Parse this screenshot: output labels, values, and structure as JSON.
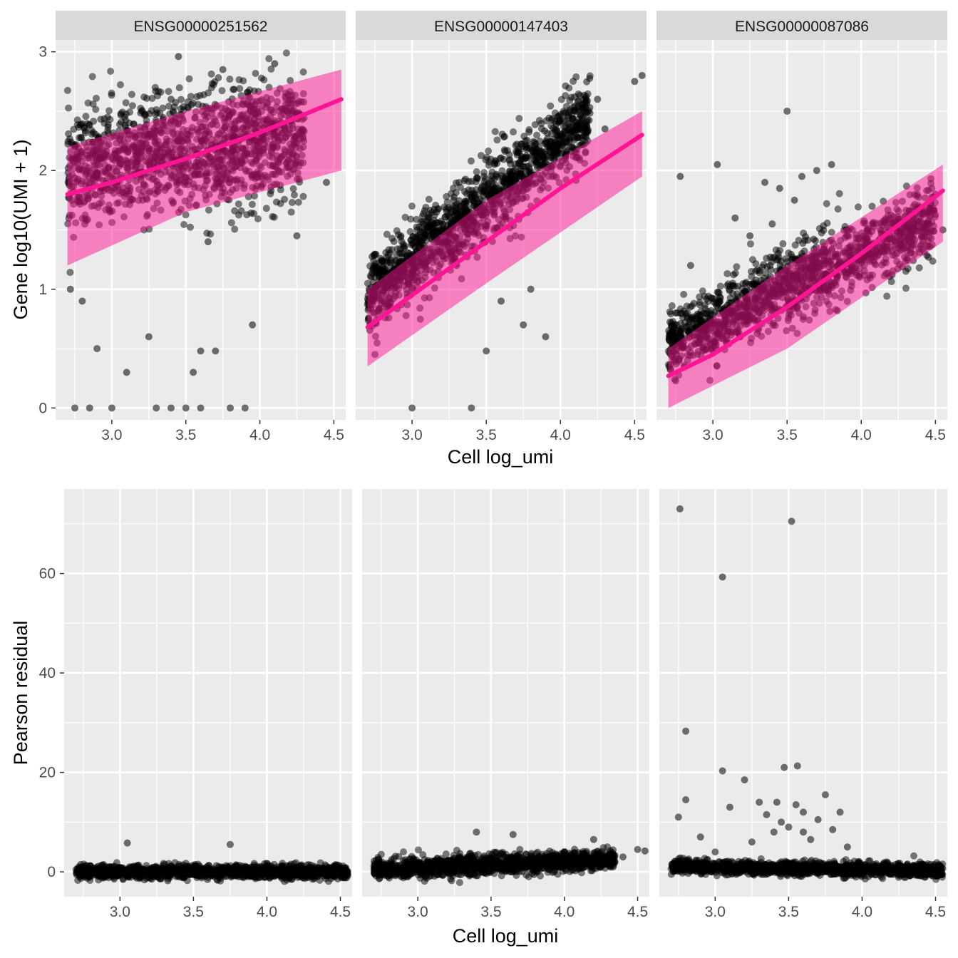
{
  "colors": {
    "panel_bg": "#ebebeb",
    "strip_bg": "#d9d9d9",
    "grid": "#ffffff",
    "point": "#000000",
    "fit_line": "#ff1493",
    "band": "#ff1493"
  },
  "chart_data": [
    {
      "type": "scatter",
      "facet_label": "ENSG00000251562",
      "xlabel": "",
      "ylabel": "Gene log10(UMI + 1)",
      "xlim": [
        2.62,
        4.58
      ],
      "ylim": [
        -0.1,
        3.1
      ],
      "x_ticks": [
        "3.0",
        "3.5",
        "4.0",
        "4.5"
      ],
      "y_ticks": [
        "0",
        "1",
        "2",
        "3"
      ],
      "fit": {
        "x": [
          2.7,
          3.0,
          3.5,
          4.0,
          4.55
        ],
        "y": [
          1.8,
          1.9,
          2.1,
          2.32,
          2.6
        ]
      },
      "band": {
        "x": [
          2.7,
          3.5,
          4.55
        ],
        "lower": [
          1.2,
          1.65,
          2.0
        ],
        "upper": [
          2.2,
          2.5,
          2.85
        ]
      },
      "points": {
        "x": [
          2.72,
          2.8,
          2.9,
          3.1,
          3.25,
          3.6,
          3.95,
          4.25,
          4.45,
          2.95,
          3.4,
          3.75,
          4.1,
          3.55,
          3.7,
          3.6,
          3.4,
          2.75,
          2.85,
          3.0,
          3.3,
          3.5,
          3.8,
          3.9,
          3.45,
          3.65
        ],
        "y": [
          1.0,
          0.9,
          0.5,
          0.3,
          0.6,
          0.48,
          0.7,
          1.45,
          1.9,
          2.3,
          2.6,
          2.85,
          2.9,
          0.3,
          0.48,
          0.0,
          0.0,
          0.0,
          0.0,
          0.0,
          0.0,
          0.0,
          0.0,
          0.0,
          2.96,
          1.4
        ]
      },
      "cloud": {
        "x_range": [
          2.7,
          4.3
        ],
        "center": [
          2.0,
          2.3
        ],
        "spread": 0.45
      }
    },
    {
      "type": "scatter",
      "facet_label": "ENSG00000147403",
      "xlabel": "Cell log_umi",
      "ylabel": "",
      "xlim": [
        2.62,
        4.58
      ],
      "ylim": [
        -0.1,
        3.1
      ],
      "x_ticks": [
        "3.0",
        "3.5",
        "4.0",
        "4.5"
      ],
      "y_ticks": [
        "0",
        "1",
        "2",
        "3"
      ],
      "fit": {
        "x": [
          2.7,
          3.0,
          3.5,
          4.0,
          4.55
        ],
        "y": [
          0.68,
          0.95,
          1.4,
          1.85,
          2.3
        ]
      },
      "band": {
        "x": [
          2.7,
          3.5,
          4.55
        ],
        "lower": [
          0.35,
          1.05,
          1.95
        ],
        "upper": [
          1.0,
          1.75,
          2.5
        ]
      },
      "points": {
        "x": [
          2.75,
          3.0,
          3.3,
          3.6,
          3.9,
          4.1,
          4.25,
          4.3,
          4.5,
          4.55,
          3.5,
          3.75,
          3.8,
          3.0,
          3.4
        ],
        "y": [
          1.1,
          1.0,
          1.2,
          0.9,
          0.6,
          2.5,
          2.6,
          2.35,
          2.75,
          2.8,
          0.48,
          0.7,
          1.0,
          0.0,
          0.0
        ]
      },
      "cloud": {
        "x_range": [
          2.7,
          4.2
        ],
        "center": [
          0.95,
          2.45
        ],
        "spread": 0.3
      }
    },
    {
      "type": "scatter",
      "facet_label": "ENSG00000087086",
      "xlabel": "",
      "ylabel": "",
      "xlim": [
        2.62,
        4.58
      ],
      "ylim": [
        -0.1,
        3.1
      ],
      "x_ticks": [
        "3.0",
        "3.5",
        "4.0",
        "4.5"
      ],
      "y_ticks": [
        "0",
        "1",
        "2",
        "3"
      ],
      "fit": {
        "x": [
          2.7,
          3.0,
          3.5,
          4.0,
          4.55
        ],
        "y": [
          0.27,
          0.45,
          0.85,
          1.3,
          1.83
        ]
      },
      "band": {
        "x": [
          2.7,
          3.5,
          4.55
        ],
        "lower": [
          0.0,
          0.5,
          1.4
        ],
        "upper": [
          0.5,
          1.2,
          2.05
        ]
      },
      "points": {
        "x": [
          2.78,
          3.03,
          3.5,
          3.15,
          3.35,
          3.4,
          3.55,
          3.6,
          3.7,
          3.8,
          3.9,
          2.85,
          2.75,
          4.55,
          4.5,
          3.25,
          3.45
        ],
        "y": [
          1.95,
          2.05,
          2.5,
          1.6,
          1.9,
          1.55,
          1.75,
          1.95,
          2.0,
          2.05,
          1.5,
          1.2,
          0.8,
          1.5,
          1.8,
          1.45,
          1.85
        ]
      },
      "cloud": {
        "x_range": [
          2.7,
          4.5
        ],
        "center": [
          0.55,
          1.6
        ],
        "spread": 0.28
      }
    },
    {
      "type": "scatter",
      "facet_label": "",
      "xlabel": "",
      "ylabel": "Pearson residual",
      "xlim": [
        2.62,
        4.58
      ],
      "ylim": [
        -5,
        77
      ],
      "x_ticks": [
        "3.0",
        "3.5",
        "4.0",
        "4.5"
      ],
      "y_ticks": [
        "0",
        "20",
        "40",
        "60"
      ],
      "points": {
        "x": [
          3.05,
          3.75,
          4.45,
          4.5
        ],
        "y": [
          5.8,
          5.5,
          1.0,
          0.5
        ]
      },
      "cloud": {
        "x_range": [
          2.7,
          4.55
        ],
        "center": [
          0.0,
          0.0
        ],
        "spread": 1.2
      }
    },
    {
      "type": "scatter",
      "facet_label": "",
      "xlabel": "Cell log_umi",
      "ylabel": "",
      "xlim": [
        2.62,
        4.58
      ],
      "ylim": [
        -5,
        77
      ],
      "x_ticks": [
        "3.0",
        "3.5",
        "4.0",
        "4.5"
      ],
      "y_ticks": [
        "0",
        "20",
        "40",
        "60"
      ],
      "points": {
        "x": [
          3.4,
          3.65,
          4.2,
          4.4,
          4.5,
          4.55
        ],
        "y": [
          8.0,
          7.5,
          6.5,
          3.0,
          4.5,
          4.2
        ]
      },
      "cloud": {
        "x_range": [
          2.7,
          4.35
        ],
        "center": [
          0.5,
          2.5
        ],
        "spread": 1.8
      }
    },
    {
      "type": "scatter",
      "facet_label": "",
      "xlabel": "",
      "ylabel": "",
      "xlim": [
        2.62,
        4.58
      ],
      "ylim": [
        -5,
        77
      ],
      "x_ticks": [
        "3.0",
        "3.5",
        "4.0",
        "4.5"
      ],
      "y_ticks": [
        "0",
        "20",
        "40",
        "60"
      ],
      "points": {
        "x": [
          2.76,
          3.52,
          3.05,
          2.8,
          3.05,
          3.2,
          3.47,
          3.56,
          2.8,
          2.75,
          3.1,
          3.3,
          3.75,
          3.6,
          3.45,
          3.4,
          3.35,
          3.5,
          3.65,
          3.8,
          3.9,
          2.9,
          3.0,
          3.55,
          3.7,
          3.25,
          3.6,
          3.85,
          3.42
        ],
        "y": [
          73.0,
          70.5,
          59.3,
          28.3,
          20.3,
          18.5,
          21.0,
          21.3,
          14.5,
          11.0,
          13.0,
          14.0,
          15.5,
          12.0,
          10.0,
          8.0,
          11.5,
          9.0,
          6.5,
          8.5,
          5.0,
          7.0,
          4.0,
          13.5,
          10.5,
          6.0,
          8.0,
          12.0,
          14.0
        ]
      },
      "cloud": {
        "x_range": [
          2.7,
          4.55
        ],
        "center": [
          1.0,
          0.3
        ],
        "spread": 1.2
      }
    }
  ]
}
